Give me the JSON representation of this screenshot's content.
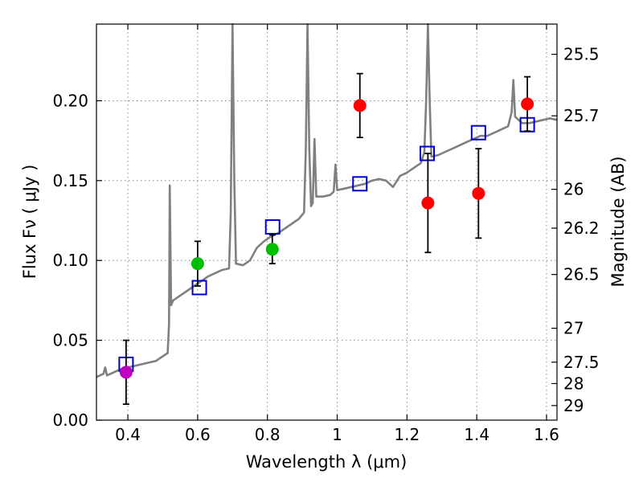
{
  "chart_data": {
    "type": "scatter",
    "xlabel": "Wavelength  λ (μm)",
    "ylabel": "Flux  Fν  ( μJy )",
    "y2label": "Magnitude (AB)",
    "xlim": [
      0.31,
      1.63
    ],
    "ylim": [
      0.0,
      0.248
    ],
    "grid": true,
    "x_ticks": [
      {
        "value": 0.4,
        "label": "0.4"
      },
      {
        "value": 0.6,
        "label": "0.6"
      },
      {
        "value": 0.8,
        "label": "0.8"
      },
      {
        "value": 1.0,
        "label": "1"
      },
      {
        "value": 1.2,
        "label": "1.2"
      },
      {
        "value": 1.4,
        "label": "1.4"
      },
      {
        "value": 1.6,
        "label": "1.6"
      }
    ],
    "y_ticks": [
      {
        "value": 0.0,
        "label": "0.00"
      },
      {
        "value": 0.05,
        "label": "0.05"
      },
      {
        "value": 0.1,
        "label": "0.10"
      },
      {
        "value": 0.15,
        "label": "0.15"
      },
      {
        "value": 0.2,
        "label": "0.20"
      }
    ],
    "mag_ticks": [
      {
        "value": 25.5,
        "label": "25.5"
      },
      {
        "value": 25.7,
        "label": "25.7"
      },
      {
        "value": 26,
        "label": "26"
      },
      {
        "value": 26.2,
        "label": "26.2"
      },
      {
        "value": 26.5,
        "label": "26.5"
      },
      {
        "value": 27,
        "label": "27"
      },
      {
        "value": 27.5,
        "label": "27.5"
      },
      {
        "value": 28,
        "label": "28"
      },
      {
        "value": 29,
        "label": "29"
      }
    ],
    "observed": [
      {
        "x": 0.395,
        "y": 0.03,
        "err": 0.02,
        "color": "#bf00bf"
      },
      {
        "x": 0.6,
        "y": 0.098,
        "err": 0.014,
        "color": "#00bf00"
      },
      {
        "x": 0.814,
        "y": 0.107,
        "err": 0.009,
        "color": "#00bf00"
      },
      {
        "x": 1.065,
        "y": 0.197,
        "err": 0.02,
        "color": "#ff0000"
      },
      {
        "x": 1.26,
        "y": 0.136,
        "err": 0.031,
        "color": "#ff0000"
      },
      {
        "x": 1.405,
        "y": 0.142,
        "err": 0.028,
        "color": "#ff0000"
      },
      {
        "x": 1.545,
        "y": 0.198,
        "err": 0.017,
        "color": "#ff0000"
      }
    ],
    "model_photometry": {
      "color": "#0000cc",
      "points": [
        {
          "x": 0.395,
          "y": 0.035
        },
        {
          "x": 0.605,
          "y": 0.083
        },
        {
          "x": 0.815,
          "y": 0.121
        },
        {
          "x": 1.065,
          "y": 0.148
        },
        {
          "x": 1.258,
          "y": 0.167
        },
        {
          "x": 1.405,
          "y": 0.18
        },
        {
          "x": 1.545,
          "y": 0.185
        }
      ]
    },
    "spectrum": {
      "color": "#808080",
      "points": [
        [
          0.31,
          0.027
        ],
        [
          0.33,
          0.029
        ],
        [
          0.335,
          0.033
        ],
        [
          0.34,
          0.028
        ],
        [
          0.36,
          0.03
        ],
        [
          0.38,
          0.032
        ],
        [
          0.4,
          0.033
        ],
        [
          0.42,
          0.034
        ],
        [
          0.44,
          0.035
        ],
        [
          0.46,
          0.036
        ],
        [
          0.48,
          0.037
        ],
        [
          0.5,
          0.04
        ],
        [
          0.514,
          0.042
        ],
        [
          0.518,
          0.06
        ],
        [
          0.52,
          0.147
        ],
        [
          0.524,
          0.072
        ],
        [
          0.53,
          0.075
        ],
        [
          0.55,
          0.078
        ],
        [
          0.57,
          0.081
        ],
        [
          0.59,
          0.084
        ],
        [
          0.61,
          0.087
        ],
        [
          0.63,
          0.09
        ],
        [
          0.65,
          0.092
        ],
        [
          0.67,
          0.094
        ],
        [
          0.69,
          0.095
        ],
        [
          0.695,
          0.13
        ],
        [
          0.7,
          0.25
        ],
        [
          0.705,
          0.15
        ],
        [
          0.71,
          0.098
        ],
        [
          0.73,
          0.097
        ],
        [
          0.75,
          0.1
        ],
        [
          0.77,
          0.108
        ],
        [
          0.79,
          0.112
        ],
        [
          0.81,
          0.115
        ],
        [
          0.83,
          0.117
        ],
        [
          0.85,
          0.12
        ],
        [
          0.87,
          0.123
        ],
        [
          0.89,
          0.126
        ],
        [
          0.905,
          0.13
        ],
        [
          0.91,
          0.17
        ],
        [
          0.915,
          0.25
        ],
        [
          0.92,
          0.17
        ],
        [
          0.925,
          0.134
        ],
        [
          0.93,
          0.136
        ],
        [
          0.935,
          0.176
        ],
        [
          0.94,
          0.14
        ],
        [
          0.96,
          0.14
        ],
        [
          0.98,
          0.141
        ],
        [
          0.99,
          0.143
        ],
        [
          0.995,
          0.16
        ],
        [
          1.0,
          0.144
        ],
        [
          1.02,
          0.145
        ],
        [
          1.04,
          0.146
        ],
        [
          1.06,
          0.147
        ],
        [
          1.08,
          0.148
        ],
        [
          1.1,
          0.15
        ],
        [
          1.12,
          0.151
        ],
        [
          1.14,
          0.15
        ],
        [
          1.16,
          0.146
        ],
        [
          1.18,
          0.153
        ],
        [
          1.2,
          0.155
        ],
        [
          1.22,
          0.158
        ],
        [
          1.24,
          0.161
        ],
        [
          1.25,
          0.168
        ],
        [
          1.255,
          0.2
        ],
        [
          1.26,
          0.25
        ],
        [
          1.265,
          0.2
        ],
        [
          1.27,
          0.165
        ],
        [
          1.29,
          0.166
        ],
        [
          1.31,
          0.168
        ],
        [
          1.33,
          0.17
        ],
        [
          1.35,
          0.172
        ],
        [
          1.37,
          0.174
        ],
        [
          1.39,
          0.176
        ],
        [
          1.41,
          0.178
        ],
        [
          1.43,
          0.178
        ],
        [
          1.45,
          0.18
        ],
        [
          1.47,
          0.182
        ],
        [
          1.49,
          0.184
        ],
        [
          1.5,
          0.193
        ],
        [
          1.505,
          0.213
        ],
        [
          1.51,
          0.19
        ],
        [
          1.53,
          0.186
        ],
        [
          1.55,
          0.186
        ],
        [
          1.57,
          0.187
        ],
        [
          1.59,
          0.188
        ],
        [
          1.61,
          0.189
        ],
        [
          1.63,
          0.188
        ]
      ]
    }
  }
}
